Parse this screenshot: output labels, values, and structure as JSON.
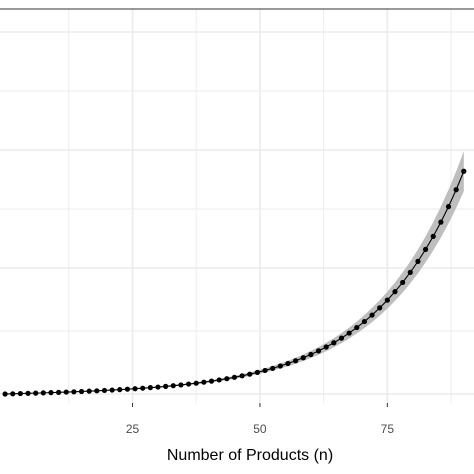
{
  "chart_data": {
    "type": "line",
    "title": "",
    "xlabel": "Number of Products (n)",
    "ylabel": "",
    "xlim": [
      -1,
      92
    ],
    "x_ticks": [
      25,
      50,
      75
    ],
    "x_tick_labels": [
      "25",
      "50",
      "75"
    ],
    "grid": true,
    "line_color": "#000000",
    "ribbon_color": "#bebebe",
    "grid_color": "#ebebeb",
    "series": [
      {
        "x": [
          0,
          1.5,
          3,
          4.5,
          6,
          7.5,
          9,
          10.5,
          12,
          13.5,
          15,
          16.5,
          18,
          19.5,
          21,
          22.5,
          24,
          25.5,
          27,
          28.5,
          30,
          31.5,
          33,
          34.5,
          36,
          37.5,
          39,
          40.5,
          42,
          43.5,
          45,
          46.5,
          48,
          49.5,
          51,
          52.5,
          54,
          55.5,
          57,
          58.5,
          60,
          61.5,
          63,
          64.5,
          66,
          67.5,
          69,
          70.5,
          72,
          73.5,
          75,
          76.5,
          78,
          79.5,
          81,
          82.5,
          84,
          85.5,
          87,
          88.5,
          90
        ],
        "y": [
          0.0,
          0.1,
          0.21,
          0.33,
          0.44,
          0.56,
          0.69,
          0.82,
          0.96,
          1.1,
          1.26,
          1.42,
          1.59,
          1.78,
          1.97,
          2.18,
          2.4,
          2.64,
          2.9,
          3.18,
          3.48,
          3.8,
          4.16,
          4.54,
          4.96,
          5.41,
          5.9,
          6.44,
          7.02,
          7.65,
          8.34,
          9.09,
          9.91,
          10.8,
          11.77,
          12.83,
          13.99,
          15.25,
          16.62,
          18.13,
          19.76,
          21.55,
          23.5,
          25.62,
          27.94,
          30.46,
          33.21,
          36.21,
          39.48,
          43.05,
          46.93,
          51.17,
          55.79,
          60.82,
          66.31,
          72.3,
          78.82,
          85.93,
          93.69,
          102.14,
          111.37
        ],
        "band": 0.09
      }
    ]
  }
}
